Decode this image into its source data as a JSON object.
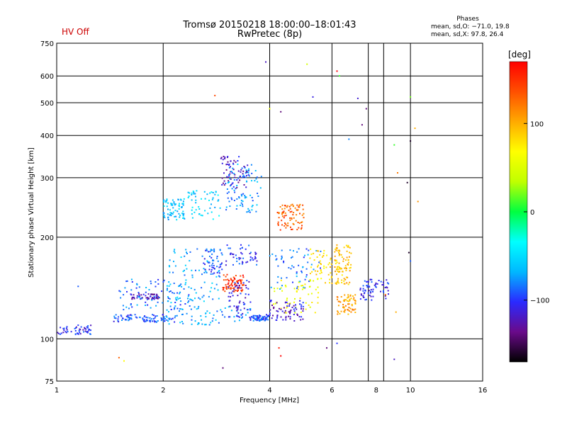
{
  "header": {
    "status": "HV Off",
    "title_line1": "Tromsø 20150218 18:00:00–18:01:43",
    "title_line2": "RwPretec (8p)"
  },
  "phases": {
    "title": "Phases",
    "o_stats": "mean, sd,O: −71.0, 19.8",
    "x_stats": "mean, sd,X:  97.8, 26.4"
  },
  "colors": {
    "status": "#cc0000",
    "grid": "#000000",
    "colorbar": [
      "#000000",
      "#6a0a8a",
      "#2a2aff",
      "#00b8ff",
      "#00ffff",
      "#00ff40",
      "#c0ff00",
      "#ffff00",
      "#ffaa00",
      "#ff5000",
      "#ff0000"
    ]
  },
  "colorbar": {
    "unit": "[deg]",
    "range": [
      -170,
      170
    ],
    "ticks": [
      100,
      0,
      -100
    ],
    "tick_labels": [
      "100",
      "0",
      "−100"
    ]
  },
  "chart_data": {
    "type": "scatter",
    "title": "Tromsø 20150218 18:00:00–18:01:43",
    "subtitle": "RwPretec (8p)",
    "xlabel": "Frequency [MHz]",
    "ylabel": "Stationary phase Virtual Height [km]",
    "xscale": "log",
    "yscale": "log",
    "xlim": [
      1,
      16
    ],
    "ylim": [
      75,
      750
    ],
    "x_ticks": [
      1,
      2,
      4,
      6,
      8,
      10,
      16
    ],
    "x_tick_labels": [
      "1",
      "2",
      "4",
      "6",
      "8",
      "10",
      "16"
    ],
    "x_gridlines": [
      2,
      4,
      6,
      7.6,
      8.4,
      10
    ],
    "y_ticks": [
      75,
      100,
      200,
      300,
      400,
      500,
      600,
      750
    ],
    "y_tick_labels": [
      "75",
      "100",
      "200",
      "300",
      "400",
      "500",
      "600",
      "750"
    ],
    "y_gridlines": [
      100,
      200,
      300,
      400,
      500,
      600
    ],
    "grid": true,
    "color_dimension": "phase [deg]",
    "clusters": [
      {
        "x": [
          1.0,
          1.25
        ],
        "y": [
          103,
          110
        ],
        "phase": -105
      },
      {
        "x": [
          1.45,
          2.2
        ],
        "y": [
          112,
          118
        ],
        "phase": -95
      },
      {
        "x": [
          1.6,
          1.95
        ],
        "y": [
          131,
          136
        ],
        "phase": -125
      },
      {
        "x": [
          2.0,
          3.6
        ],
        "y": [
          110,
          125
        ],
        "phase": -70
      },
      {
        "x": [
          1.5,
          2.4
        ],
        "y": [
          122,
          150
        ],
        "phase": -85
      },
      {
        "x": [
          2.05,
          2.9
        ],
        "y": [
          128,
          185
        ],
        "phase": -70
      },
      {
        "x": [
          2.6,
          2.95
        ],
        "y": [
          155,
          185
        ],
        "phase": -95
      },
      {
        "x": [
          2.0,
          2.3
        ],
        "y": [
          225,
          260
        ],
        "phase": -60
      },
      {
        "x": [
          2.35,
          2.9
        ],
        "y": [
          225,
          275
        ],
        "phase": -55
      },
      {
        "x": [
          2.9,
          3.5
        ],
        "y": [
          280,
          350
        ],
        "phase": -120
      },
      {
        "x": [
          3.0,
          3.8
        ],
        "y": [
          235,
          330
        ],
        "phase": -75
      },
      {
        "x": [
          2.95,
          3.4
        ],
        "y": [
          138,
          155
        ],
        "phase": 150
      },
      {
        "x": [
          3.05,
          3.55
        ],
        "y": [
          115,
          150
        ],
        "phase": -110
      },
      {
        "x": [
          3.0,
          3.7
        ],
        "y": [
          165,
          190
        ],
        "phase": -100
      },
      {
        "x": [
          3.5,
          4.0
        ],
        "y": [
          113,
          118
        ],
        "phase": -95
      },
      {
        "x": [
          4.0,
          5.6
        ],
        "y": [
          140,
          185
        ],
        "phase": -85
      },
      {
        "x": [
          4.1,
          5.5
        ],
        "y": [
          118,
          150
        ],
        "phase": 60
      },
      {
        "x": [
          4.0,
          5.0
        ],
        "y": [
          113,
          130
        ],
        "phase": -115
      },
      {
        "x": [
          5.2,
          6.0
        ],
        "y": [
          145,
          185
        ],
        "phase": 80
      },
      {
        "x": [
          6.2,
          7.0
        ],
        "y": [
          118,
          135
        ],
        "phase": 105
      },
      {
        "x": [
          6.1,
          6.8
        ],
        "y": [
          145,
          190
        ],
        "phase": 95
      },
      {
        "x": [
          7.2,
          8.7
        ],
        "y": [
          130,
          150
        ],
        "phase": -105
      },
      {
        "x": [
          4.2,
          5.0
        ],
        "y": [
          210,
          250
        ],
        "phase": 130
      }
    ],
    "sparse_points": [
      {
        "x": 2.8,
        "y": 525,
        "phase": 140
      },
      {
        "x": 3.9,
        "y": 660,
        "phase": -120
      },
      {
        "x": 4.0,
        "y": 480,
        "phase": 60
      },
      {
        "x": 4.3,
        "y": 470,
        "phase": -140
      },
      {
        "x": 5.1,
        "y": 650,
        "phase": 45
      },
      {
        "x": 5.3,
        "y": 520,
        "phase": -110
      },
      {
        "x": 6.2,
        "y": 620,
        "phase": 170
      },
      {
        "x": 6.3,
        "y": 600,
        "phase": 10
      },
      {
        "x": 7.1,
        "y": 515,
        "phase": -115
      },
      {
        "x": 7.5,
        "y": 480,
        "phase": -140
      },
      {
        "x": 10.0,
        "y": 520,
        "phase": 20
      },
      {
        "x": 9.0,
        "y": 375,
        "phase": 10
      },
      {
        "x": 10.0,
        "y": 385,
        "phase": -160
      },
      {
        "x": 10.3,
        "y": 420,
        "phase": 100
      },
      {
        "x": 6.7,
        "y": 390,
        "phase": -80
      },
      {
        "x": 7.3,
        "y": 430,
        "phase": -140
      },
      {
        "x": 9.2,
        "y": 310,
        "phase": 120
      },
      {
        "x": 9.8,
        "y": 290,
        "phase": -160
      },
      {
        "x": 10.5,
        "y": 255,
        "phase": 110
      },
      {
        "x": 1.5,
        "y": 88,
        "phase": 130
      },
      {
        "x": 1.55,
        "y": 86,
        "phase": 70
      },
      {
        "x": 2.95,
        "y": 82,
        "phase": -140
      },
      {
        "x": 4.25,
        "y": 94,
        "phase": 160
      },
      {
        "x": 4.3,
        "y": 89,
        "phase": 170
      },
      {
        "x": 5.8,
        "y": 94,
        "phase": -140
      },
      {
        "x": 6.2,
        "y": 97,
        "phase": -100
      },
      {
        "x": 9.0,
        "y": 87,
        "phase": -120
      },
      {
        "x": 1.15,
        "y": 143,
        "phase": -90
      },
      {
        "x": 9.9,
        "y": 180,
        "phase": -160
      },
      {
        "x": 10.0,
        "y": 170,
        "phase": -90
      },
      {
        "x": 8.5,
        "y": 135,
        "phase": 130
      },
      {
        "x": 9.1,
        "y": 120,
        "phase": 100
      }
    ]
  }
}
